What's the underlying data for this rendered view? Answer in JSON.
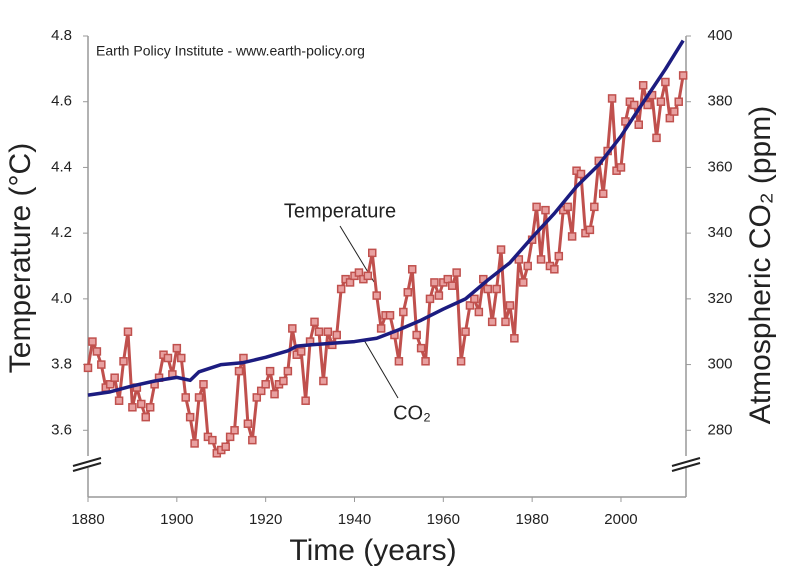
{
  "chart_data": {
    "type": "line",
    "source": "Earth Policy Institute - www.earth-policy.org",
    "x_label": "Time (years)",
    "y_label": "Temperature (°C)",
    "y2_label": "Atmospheric CO₂ (ppm)",
    "xlim": [
      1880,
      2015
    ],
    "xticks": [
      1880,
      1900,
      1920,
      1940,
      1960,
      1980,
      2000
    ],
    "ylim": [
      3.4,
      4.8
    ],
    "yticks": [
      3.6,
      3.8,
      {
        "value": 4.0,
        "label": "4.0"
      },
      4.2,
      4.4,
      4.6,
      4.8
    ],
    "y2lim": [
      260,
      400
    ],
    "y2ticks": [
      280,
      300,
      320,
      340,
      360,
      380,
      400
    ],
    "grid": false,
    "series": [
      {
        "name": "Temperature",
        "color": "#c0504d",
        "markers": true,
        "x": [
          1880,
          1881,
          1882,
          1883,
          1884,
          1885,
          1886,
          1887,
          1888,
          1889,
          1890,
          1891,
          1892,
          1893,
          1894,
          1895,
          1896,
          1897,
          1898,
          1899,
          1900,
          1901,
          1902,
          1903,
          1904,
          1905,
          1906,
          1907,
          1908,
          1909,
          1910,
          1911,
          1912,
          1913,
          1914,
          1915,
          1916,
          1917,
          1918,
          1919,
          1920,
          1921,
          1922,
          1923,
          1924,
          1925,
          1926,
          1927,
          1928,
          1929,
          1930,
          1931,
          1932,
          1933,
          1934,
          1935,
          1936,
          1937,
          1938,
          1939,
          1940,
          1941,
          1942,
          1943,
          1944,
          1945,
          1946,
          1947,
          1948,
          1949,
          1950,
          1951,
          1952,
          1953,
          1954,
          1955,
          1956,
          1957,
          1958,
          1959,
          1960,
          1961,
          1962,
          1963,
          1964,
          1965,
          1966,
          1967,
          1968,
          1969,
          1970,
          1971,
          1972,
          1973,
          1974,
          1975,
          1976,
          1977,
          1978,
          1979,
          1980,
          1981,
          1982,
          1983,
          1984,
          1985,
          1986,
          1987,
          1988,
          1989,
          1990,
          1991,
          1992,
          1993,
          1994,
          1995,
          1996,
          1997,
          1998,
          1999,
          2000,
          2001,
          2002,
          2003,
          2004,
          2005,
          2006,
          2007,
          2008,
          2009,
          2010,
          2011,
          2012,
          2013,
          2014
        ],
        "values": [
          3.79,
          3.87,
          3.84,
          3.8,
          3.73,
          3.74,
          3.76,
          3.69,
          3.81,
          3.9,
          3.67,
          3.73,
          3.68,
          3.64,
          3.67,
          3.74,
          3.76,
          3.83,
          3.82,
          3.77,
          3.85,
          3.82,
          3.7,
          3.64,
          3.56,
          3.7,
          3.74,
          3.58,
          3.57,
          3.53,
          3.54,
          3.55,
          3.58,
          3.6,
          3.78,
          3.82,
          3.62,
          3.57,
          3.7,
          3.72,
          3.74,
          3.78,
          3.71,
          3.74,
          3.75,
          3.78,
          3.91,
          3.83,
          3.84,
          3.69,
          3.87,
          3.93,
          3.9,
          3.75,
          3.9,
          3.86,
          3.89,
          4.03,
          4.06,
          4.05,
          4.07,
          4.08,
          4.06,
          4.07,
          4.14,
          4.01,
          3.91,
          3.95,
          3.95,
          3.89,
          3.81,
          3.96,
          4.02,
          4.09,
          3.89,
          3.85,
          3.81,
          4.0,
          4.05,
          4.01,
          4.05,
          4.06,
          4.04,
          4.08,
          3.81,
          3.9,
          3.98,
          4.0,
          3.96,
          4.06,
          4.03,
          3.93,
          4.03,
          4.15,
          3.93,
          3.98,
          3.88,
          4.12,
          4.05,
          4.1,
          4.18,
          4.28,
          4.12,
          4.27,
          4.1,
          4.09,
          4.13,
          4.27,
          4.28,
          4.19,
          4.39,
          4.38,
          4.2,
          4.21,
          4.28,
          4.42,
          4.32,
          4.45,
          4.61,
          4.39,
          4.4,
          4.54,
          4.6,
          4.59,
          4.53,
          4.65,
          4.59,
          4.62,
          4.49,
          4.6,
          4.66,
          4.55,
          4.57,
          4.6,
          4.68
        ]
      },
      {
        "name": "CO₂",
        "color": "#1c1c80",
        "axis": "y2",
        "markers": false,
        "x": [
          1880,
          1885,
          1890,
          1895,
          1900,
          1903,
          1905,
          1910,
          1915,
          1920,
          1925,
          1927,
          1930,
          1935,
          1940,
          1945,
          1950,
          1955,
          1960,
          1965,
          1970,
          1975,
          1980,
          1985,
          1990,
          1995,
          2000,
          2005,
          2010,
          2014
        ],
        "values": [
          290.7,
          291.7,
          293.5,
          295.0,
          296.1,
          295.2,
          297.8,
          300.0,
          300.6,
          302.2,
          304.2,
          305.6,
          306.0,
          306.5,
          307.0,
          308.0,
          310.6,
          313.5,
          316.9,
          320.0,
          325.7,
          331.0,
          338.7,
          346.0,
          354.2,
          360.8,
          369.5,
          379.8,
          389.9,
          398.6
        ]
      }
    ]
  }
}
